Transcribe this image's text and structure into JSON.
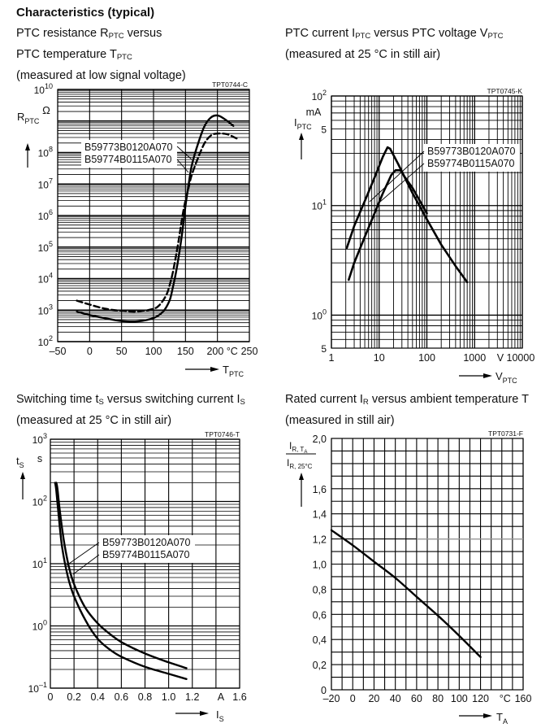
{
  "heading": "Characteristics (typical)",
  "captions": {
    "c1": {
      "l1a": "PTC resistance R",
      "l1sub": "PTC",
      "l1b": " versus",
      "l2a": "PTC temperature T",
      "l2sub": "PTC",
      "l3": "(measured at low signal voltage)"
    },
    "c2": {
      "l1a": "PTC current I",
      "l1sub": "PTC",
      "l1b": " versus PTC voltage V",
      "l1sub2": "PTC",
      "l2": "(measured at 25 °C in still air)"
    },
    "c3": {
      "l1a": "Switching time t",
      "l1sub": "S",
      "l1b": " versus switching current I",
      "l1sub2": "S",
      "l2": "(measured at 25 °C in still air)"
    },
    "c4": {
      "l1a": "Rated current I",
      "l1sub": "R",
      "l1b": " versus ambient temperature T",
      "l2": "(measured in still air)"
    }
  },
  "chart_data": [
    {
      "type": "line",
      "id": "TPT0744-C",
      "title": "PTC resistance RPTC versus PTC temperature TPTC",
      "xlabel": "T",
      "xlabel_sub": "PTC",
      "xunit": "°C",
      "ylabel": "R",
      "ylabel_sub": "PTC",
      "yunit": "Ω",
      "xlim": [
        -50,
        250
      ],
      "ylim": [
        100,
        10000000000
      ],
      "yscale": "log",
      "xticks": [
        "–50",
        "0",
        "50",
        "100",
        "150",
        "200",
        "250"
      ],
      "yticks": [
        {
          "base": "10",
          "exp": "2"
        },
        {
          "base": "10",
          "exp": "3"
        },
        {
          "base": "10",
          "exp": "4"
        },
        {
          "base": "10",
          "exp": "5"
        },
        {
          "base": "10",
          "exp": "6"
        },
        {
          "base": "10",
          "exp": "7"
        },
        {
          "base": "10",
          "exp": "8"
        },
        {
          "base": "10",
          "exp": "10"
        }
      ],
      "grid": true,
      "legend": [
        "B59773B0120A070",
        "B59774B0115A070"
      ],
      "series": [
        {
          "name": "B59773B0120A070",
          "style": "solid",
          "x": [
            -20,
            0,
            25,
            50,
            75,
            100,
            115,
            125,
            130,
            135,
            140,
            145,
            150,
            155,
            160,
            170,
            180,
            190,
            200,
            210,
            225
          ],
          "y": [
            900,
            700,
            550,
            450,
            440,
            560,
            900,
            2000,
            5000,
            15000,
            60000,
            300000,
            2000000,
            10000000,
            40000000,
            200000000,
            700000000,
            1300000000,
            1500000000,
            1200000000,
            700000000
          ]
        },
        {
          "name": "B59774B0115A070",
          "style": "dashed",
          "x": [
            -20,
            0,
            25,
            50,
            75,
            100,
            110,
            120,
            125,
            130,
            135,
            140,
            145,
            150,
            155,
            160,
            170,
            180,
            190,
            200,
            215,
            230
          ],
          "y": [
            2000,
            1500,
            1100,
            950,
            900,
            1100,
            1500,
            3000,
            6000,
            15000,
            50000,
            200000,
            900000,
            3000000,
            8000000,
            20000000,
            70000000,
            200000000,
            350000000,
            400000000,
            380000000,
            280000000
          ]
        }
      ]
    },
    {
      "type": "line",
      "id": "TPT0745-K",
      "title": "PTC current IPTC versus PTC voltage VPTC",
      "xlabel": "V",
      "xlabel_sub": "PTC",
      "xunit": "V",
      "ylabel": "I",
      "ylabel_sub": "PTC",
      "yunit": "mA",
      "xlim": [
        1,
        10000
      ],
      "xscale": "log",
      "ylim": [
        0.5,
        100
      ],
      "yscale": "log",
      "xticks": [
        "1",
        "10",
        "100",
        "1000",
        "10000"
      ],
      "yticks": [
        {
          "base": "5",
          "exp": ""
        },
        {
          "base": "10",
          "exp": "0"
        },
        {
          "base": "5",
          "exp": ""
        },
        {
          "base": "10",
          "exp": "1"
        },
        {
          "base": "5",
          "exp": ""
        },
        {
          "base": "10",
          "exp": "2"
        }
      ],
      "grid": true,
      "legend": [
        "B59773B0120A070",
        "B59774B0115A070"
      ],
      "series": [
        {
          "name": "B59773B0120A070",
          "x": [
            2.1,
            3,
            5,
            8,
            12,
            15,
            17,
            25,
            50,
            100,
            200,
            400,
            700
          ],
          "y": [
            4.1,
            6.5,
            11,
            18,
            28,
            34,
            33,
            24,
            13,
            7.5,
            4.4,
            2.8,
            2.0
          ]
        },
        {
          "name": "B59774B0115A070",
          "x": [
            2.3,
            3,
            5,
            8,
            12,
            18,
            22,
            28,
            35,
            50,
            100
          ],
          "y": [
            2.1,
            3.0,
            5.2,
            8.5,
            13,
            19,
            21,
            21,
            18,
            14.5,
            8.5
          ]
        }
      ]
    },
    {
      "type": "line",
      "id": "TPT0746-T",
      "title": "Switching time tS versus switching current IS",
      "xlabel": "I",
      "xlabel_sub": "S",
      "xunit": "A",
      "ylabel": "t",
      "ylabel_sub": "S",
      "yunit": "s",
      "xlim": [
        0,
        1.6
      ],
      "ylim": [
        0.1,
        1000
      ],
      "yscale": "log",
      "xticks": [
        "0",
        "0.2",
        "0.4",
        "0.6",
        "0.8",
        "1.0",
        "1.2",
        "1.6"
      ],
      "yticks": [
        {
          "base": "10",
          "exp": "–1"
        },
        {
          "base": "10",
          "exp": "0"
        },
        {
          "base": "10",
          "exp": "1"
        },
        {
          "base": "10",
          "exp": "2"
        },
        {
          "base": "10",
          "exp": "3"
        }
      ],
      "grid": true,
      "legend": [
        "B59773B0120A070",
        "B59774B0115A070"
      ],
      "series": [
        {
          "name": "B59773B0120A070",
          "x": [
            0.04,
            0.05,
            0.07,
            0.1,
            0.15,
            0.2,
            0.3,
            0.4,
            0.5,
            0.6,
            0.8,
            1.0,
            1.15
          ],
          "y": [
            200,
            150,
            60,
            18,
            6,
            3,
            1.2,
            0.62,
            0.42,
            0.32,
            0.22,
            0.17,
            0.14
          ]
        },
        {
          "name": "B59774B0115A070",
          "x": [
            0.05,
            0.06,
            0.08,
            0.12,
            0.17,
            0.22,
            0.3,
            0.4,
            0.5,
            0.6,
            0.8,
            1.0,
            1.15
          ],
          "y": [
            200,
            160,
            70,
            20,
            7,
            3.8,
            1.9,
            1.1,
            0.75,
            0.55,
            0.36,
            0.26,
            0.21
          ]
        }
      ]
    },
    {
      "type": "line",
      "id": "TPT0731-F",
      "title": "Rated current IR versus ambient temperature TA",
      "xlabel": "T",
      "xlabel_sub": "A",
      "xunit": "°C",
      "ylabel_num": "I",
      "ylabel_num_sub": "R, T",
      "ylabel_num_subsub": "A",
      "ylabel_den": "I",
      "ylabel_den_sub": "R, 25°C",
      "xlim": [
        -20,
        160
      ],
      "ylim": [
        0,
        2.0
      ],
      "xticks": [
        "–20",
        "0",
        "20",
        "40",
        "60",
        "80",
        "100",
        "120",
        "160"
      ],
      "yticks": [
        "0",
        "0,2",
        "0,4",
        "0,6",
        "0,8",
        "1,0",
        "1,2",
        "1,4",
        "1,6",
        "2,0"
      ],
      "grid": true,
      "series": [
        {
          "name": "IR ratio",
          "x": [
            -20,
            0,
            20,
            40,
            60,
            80,
            100,
            120
          ],
          "y": [
            1.27,
            1.15,
            1.02,
            0.89,
            0.74,
            0.59,
            0.43,
            0.26
          ]
        }
      ]
    }
  ]
}
